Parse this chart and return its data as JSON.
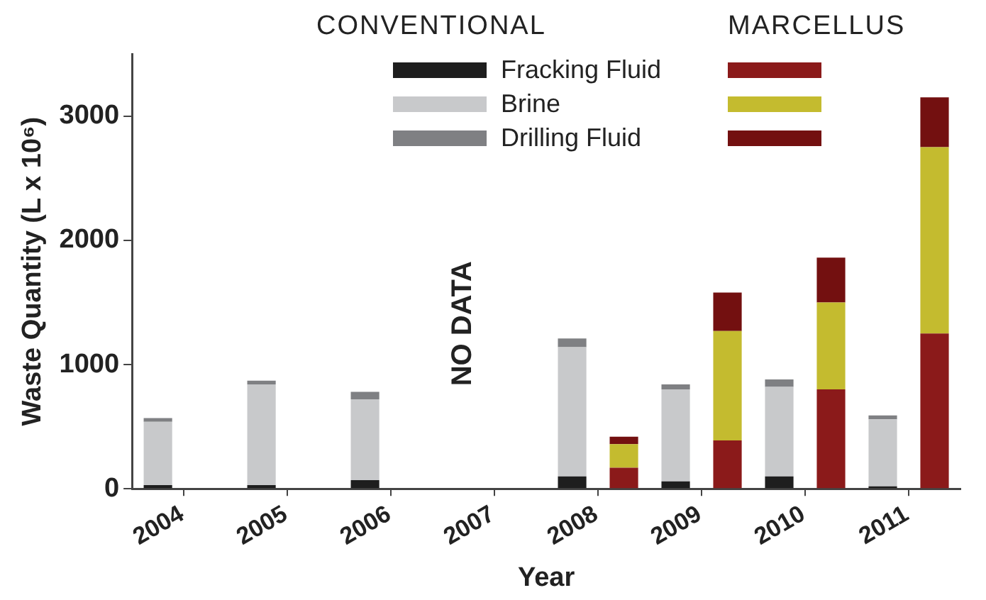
{
  "chart_data": {
    "type": "bar",
    "stacked": true,
    "xlabel": "Year",
    "ylabel": "Waste Quantity (L x 10⁶)",
    "categories": [
      "2004",
      null,
      "2005",
      null,
      "2006",
      null,
      "2007",
      null,
      "2008",
      null,
      "2009",
      null,
      "2010",
      null,
      "2011",
      null
    ],
    "series": [
      {
        "name": "Fracking Fluid",
        "colors": [
          "#1e1e1e",
          "#8b1a1a",
          "#1e1e1e",
          "#8b1a1a",
          "#1e1e1e",
          "#8b1a1a",
          "#1e1e1e",
          "#8b1a1a",
          "#1e1e1e",
          "#8b1a1a",
          "#1e1e1e",
          "#8b1a1a",
          "#1e1e1e",
          "#8b1a1a",
          "#1e1e1e",
          "#8b1a1a"
        ],
        "values": [
          30,
          null,
          30,
          null,
          70,
          null,
          null,
          null,
          100,
          170,
          60,
          390,
          100,
          800,
          20,
          1250
        ]
      },
      {
        "name": "Brine",
        "colors": [
          "#c8c9cb",
          "#c4bb2f",
          "#c8c9cb",
          "#c4bb2f",
          "#c8c9cb",
          "#c4bb2f",
          "#c8c9cb",
          "#c4bb2f",
          "#c8c9cb",
          "#c4bb2f",
          "#c8c9cb",
          "#c4bb2f",
          "#c8c9cb",
          "#c4bb2f",
          "#c8c9cb",
          "#c4bb2f"
        ],
        "values": [
          510,
          null,
          810,
          null,
          650,
          null,
          null,
          null,
          1040,
          190,
          740,
          880,
          720,
          700,
          540,
          1500
        ]
      },
      {
        "name": "Drilling Fluid",
        "colors": [
          "#7f8083",
          "#731010",
          "#7f8083",
          "#731010",
          "#7f8083",
          "#731010",
          "#7f8083",
          "#731010",
          "#7f8083",
          "#731010",
          "#7f8083",
          "#731010",
          "#7f8083",
          "#731010",
          "#7f8083",
          "#731010"
        ],
        "values": [
          30,
          null,
          30,
          null,
          60,
          null,
          null,
          null,
          70,
          60,
          40,
          310,
          60,
          360,
          30,
          400
        ]
      }
    ],
    "ylim": [
      0,
      3500
    ],
    "yticks": [
      0,
      1000,
      2000,
      3000
    ],
    "grid": false,
    "legend": "top",
    "annotations": [
      "CONVENTIONAL",
      "MARCELLUS",
      "NO DATA"
    ]
  }
}
